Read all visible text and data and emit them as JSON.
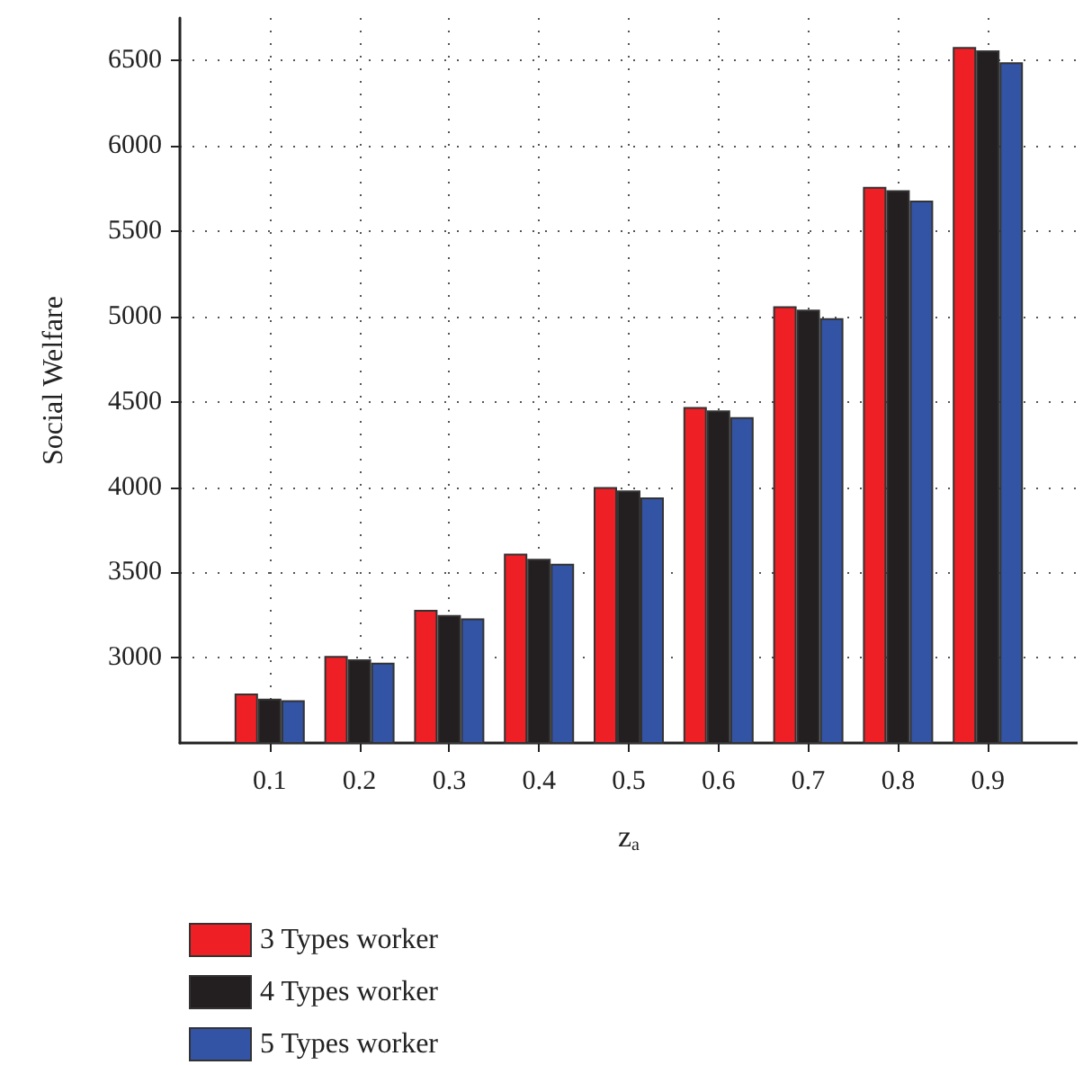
{
  "chart_data": {
    "type": "bar",
    "xlabel": "z$_{a}$",
    "ylabel": "Social Welfare",
    "x": [
      0.1,
      0.2,
      0.3,
      0.4,
      0.5,
      0.6,
      0.7,
      0.8,
      0.9
    ],
    "xlim": [
      0,
      1
    ],
    "xticks": [
      0.1,
      0.2,
      0.3,
      0.4,
      0.5,
      0.6,
      0.7,
      0.8,
      0.9
    ],
    "ylim": [
      2500,
      6750
    ],
    "yticks": [
      3000,
      3500,
      4000,
      4500,
      5000,
      5500,
      6000,
      6500
    ],
    "grid": true,
    "legend": "bottom left",
    "series": [
      {
        "name": "3 Types worker",
        "color": "#ee1f25",
        "values": [
          2790,
          3010,
          3280,
          3610,
          4000,
          4470,
          5060,
          5760,
          6580
        ]
      },
      {
        "name": "4 Types worker",
        "color": "#231f20",
        "values": [
          2760,
          2990,
          3250,
          3580,
          3980,
          4450,
          5040,
          5740,
          6560
        ]
      },
      {
        "name": "5 Types worker",
        "color": "#3353a4",
        "values": [
          2750,
          2970,
          3230,
          3550,
          3940,
          4410,
          4990,
          5680,
          6490
        ]
      }
    ]
  }
}
